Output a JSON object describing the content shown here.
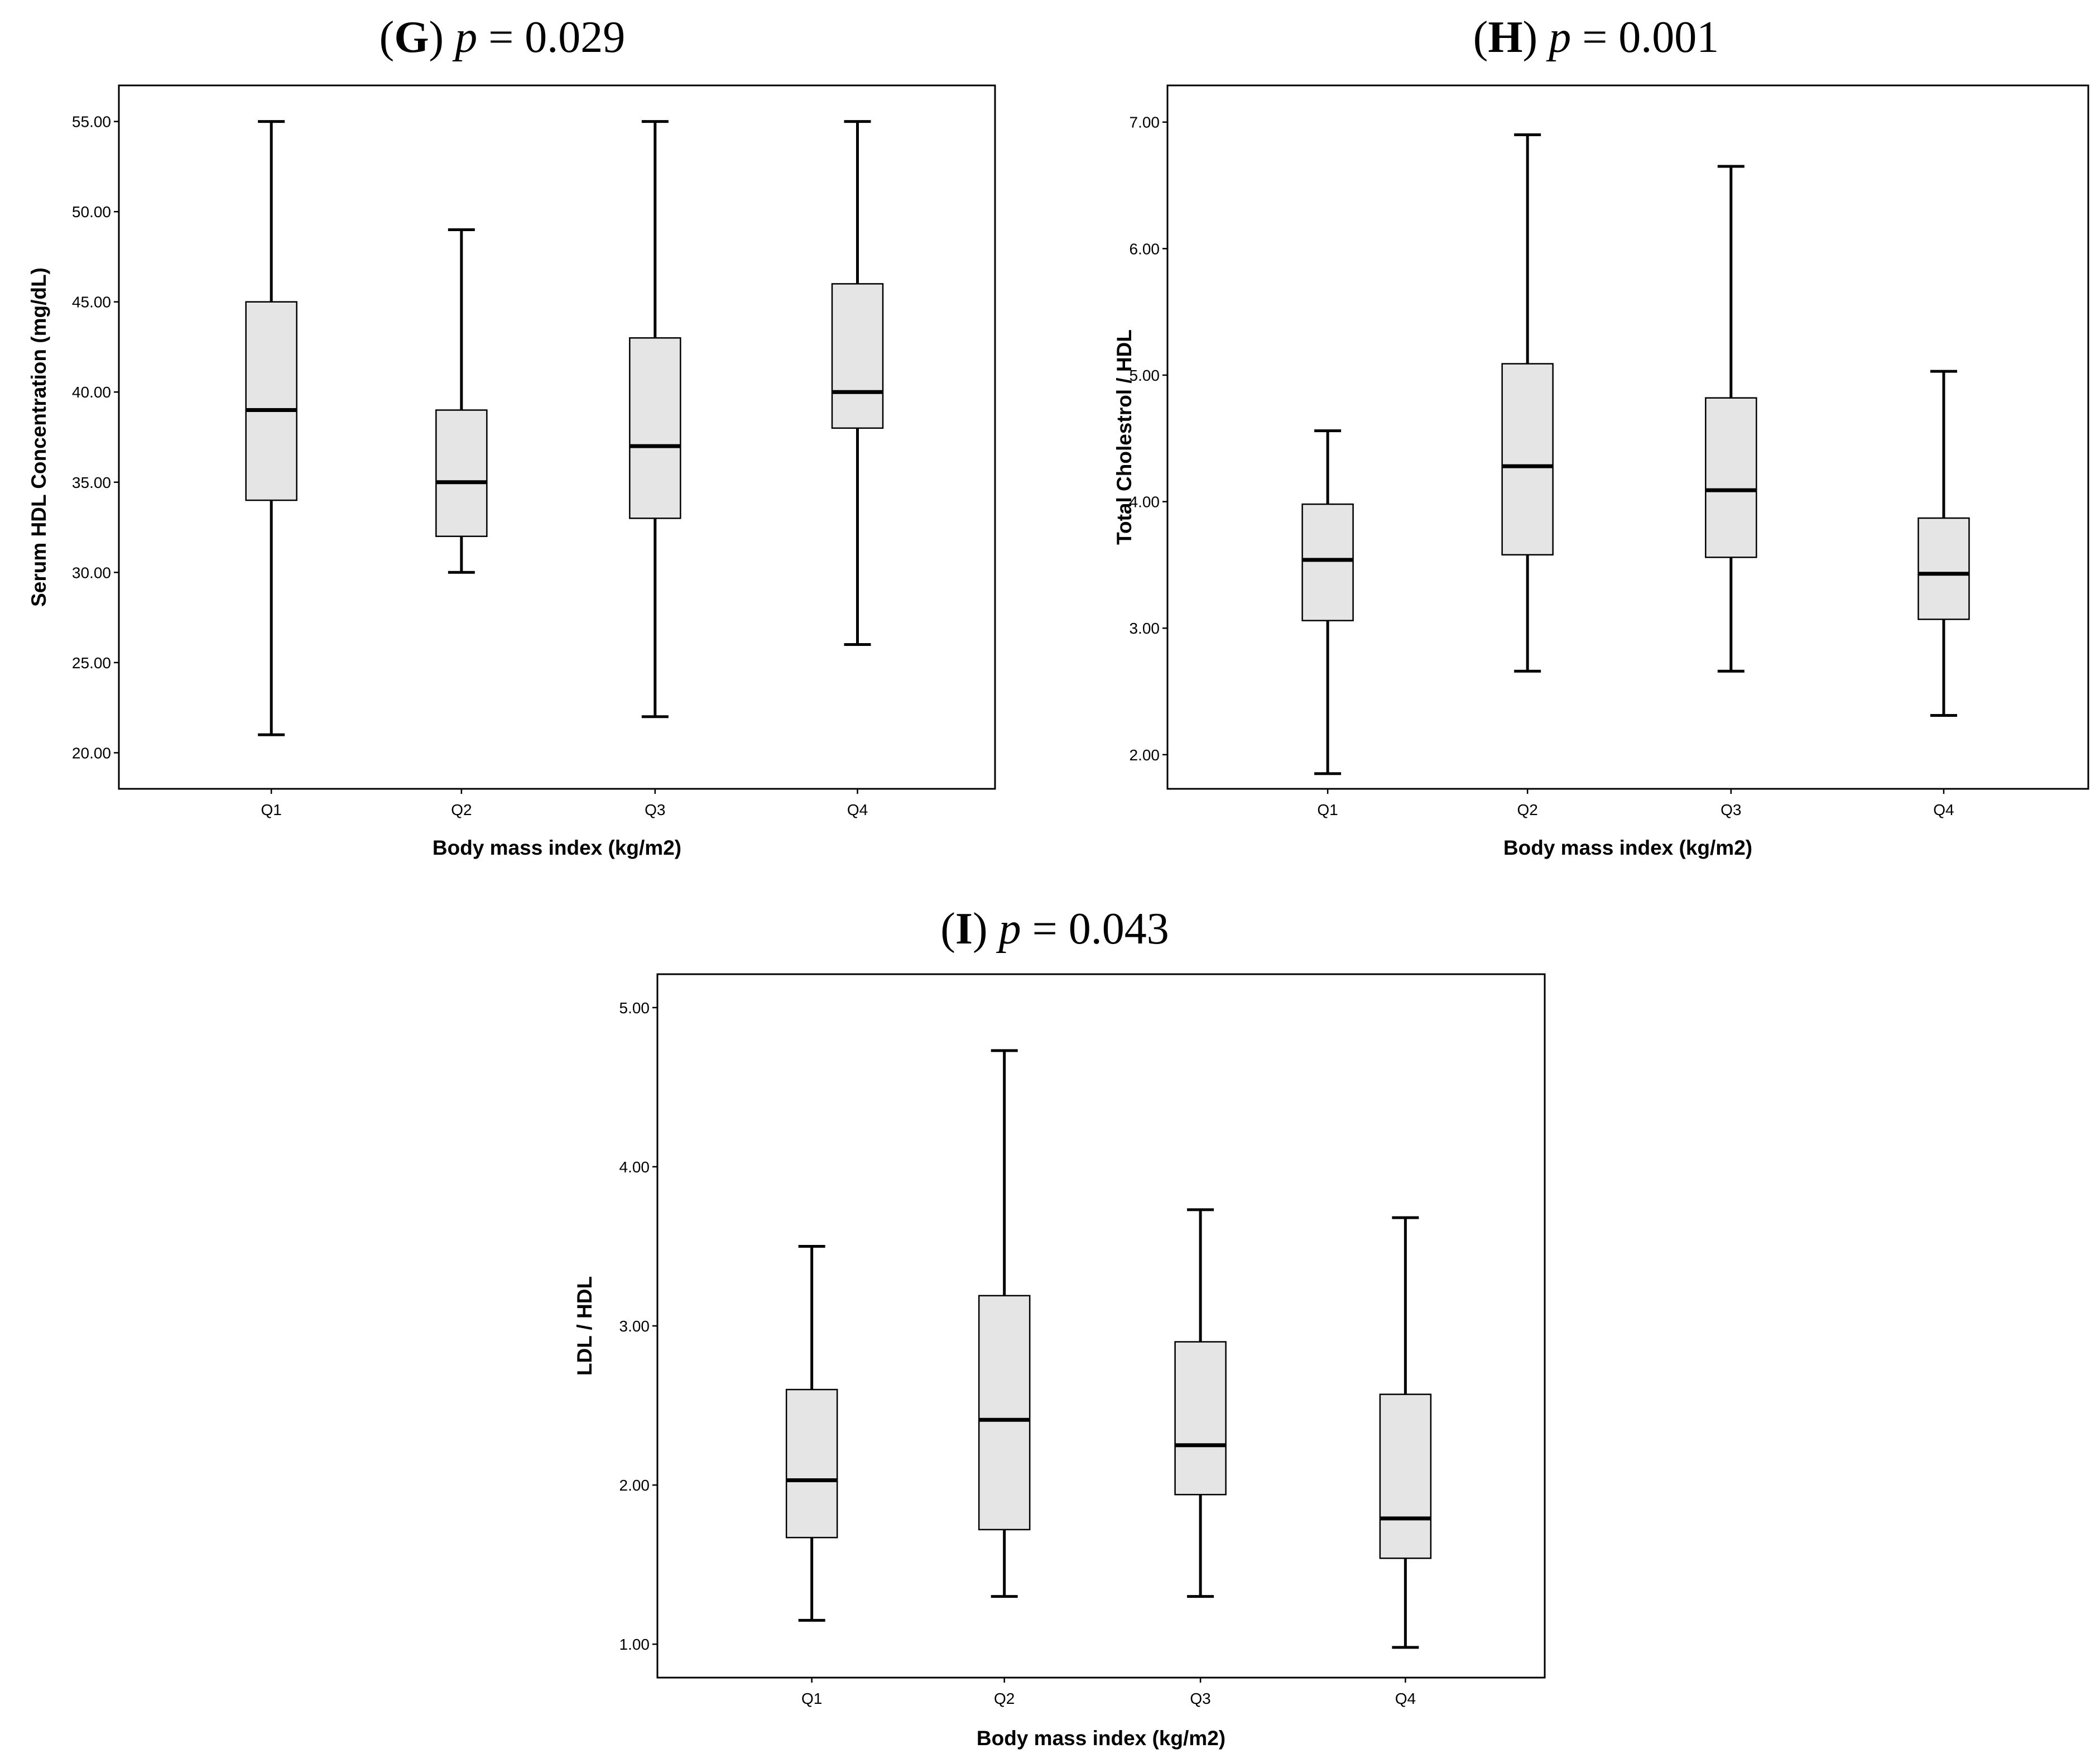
{
  "chart_data": [
    {
      "type": "boxplot",
      "panel": "G",
      "title": {
        "letter": "G",
        "p_symbol": "p",
        "p_text": " = 0.029"
      },
      "xlabel": "Body mass index (kg/m2)",
      "ylabel": "Serum HDL Concentration (mg/dL)",
      "categories": [
        "Q1",
        "Q2",
        "Q3",
        "Q4"
      ],
      "ylim": [
        18.0,
        57.0
      ],
      "yticks": [
        20,
        25,
        30,
        35,
        40,
        45,
        50,
        55
      ],
      "ytick_labels": [
        "20.00",
        "25.00",
        "30.00",
        "35.00",
        "40.00",
        "45.00",
        "50.00",
        "55.00"
      ],
      "boxes": [
        {
          "category": "Q1",
          "min": 21,
          "q1": 34,
          "median": 39,
          "q3": 45,
          "max": 55
        },
        {
          "category": "Q2",
          "min": 30,
          "q1": 32,
          "median": 35,
          "q3": 39,
          "max": 49
        },
        {
          "category": "Q3",
          "min": 22,
          "q1": 33,
          "median": 37,
          "q3": 43,
          "max": 55
        },
        {
          "category": "Q4",
          "min": 26,
          "q1": 38,
          "median": 40,
          "q3": 46,
          "max": 55
        }
      ]
    },
    {
      "type": "boxplot",
      "panel": "H",
      "title": {
        "letter": "H",
        "p_symbol": "p",
        "p_text": " = 0.001"
      },
      "xlabel": "Body mass index (kg/m2)",
      "ylabel": "Total Cholestrol / HDL",
      "categories": [
        "Q1",
        "Q2",
        "Q3",
        "Q4"
      ],
      "ylim": [
        1.73,
        7.29
      ],
      "yticks": [
        2,
        3,
        4,
        5,
        6,
        7
      ],
      "ytick_labels": [
        "2.00",
        "3.00",
        "4.00",
        "5.00",
        "6.00",
        "7.00"
      ],
      "boxes": [
        {
          "category": "Q1",
          "min": 1.85,
          "q1": 3.06,
          "median": 3.54,
          "q3": 3.98,
          "max": 4.56
        },
        {
          "category": "Q2",
          "min": 2.66,
          "q1": 3.58,
          "median": 4.28,
          "q3": 5.09,
          "max": 6.9
        },
        {
          "category": "Q3",
          "min": 2.66,
          "q1": 3.56,
          "median": 4.09,
          "q3": 4.82,
          "max": 6.65
        },
        {
          "category": "Q4",
          "min": 2.31,
          "q1": 3.07,
          "median": 3.43,
          "q3": 3.87,
          "max": 5.03
        }
      ]
    },
    {
      "type": "boxplot",
      "panel": "I",
      "title": {
        "letter": "I",
        "p_symbol": "p",
        "p_text": " = 0.043"
      },
      "xlabel": "Body mass index (kg/m2)",
      "ylabel": "LDL / HDL",
      "categories": [
        "Q1",
        "Q2",
        "Q3",
        "Q4"
      ],
      "ylim": [
        0.79,
        5.21
      ],
      "yticks": [
        1,
        2,
        3,
        4,
        5
      ],
      "ytick_labels": [
        "1.00",
        "2.00",
        "3.00",
        "4.00",
        "5.00"
      ],
      "boxes": [
        {
          "category": "Q1",
          "min": 1.15,
          "q1": 1.67,
          "median": 2.03,
          "q3": 2.6,
          "max": 3.5
        },
        {
          "category": "Q2",
          "min": 1.3,
          "q1": 1.72,
          "median": 2.41,
          "q3": 3.19,
          "max": 4.73
        },
        {
          "category": "Q3",
          "min": 1.3,
          "q1": 1.94,
          "median": 2.25,
          "q3": 2.9,
          "max": 3.73
        },
        {
          "category": "Q4",
          "min": 0.98,
          "q1": 1.54,
          "median": 1.79,
          "q3": 2.57,
          "max": 3.68
        }
      ]
    }
  ]
}
